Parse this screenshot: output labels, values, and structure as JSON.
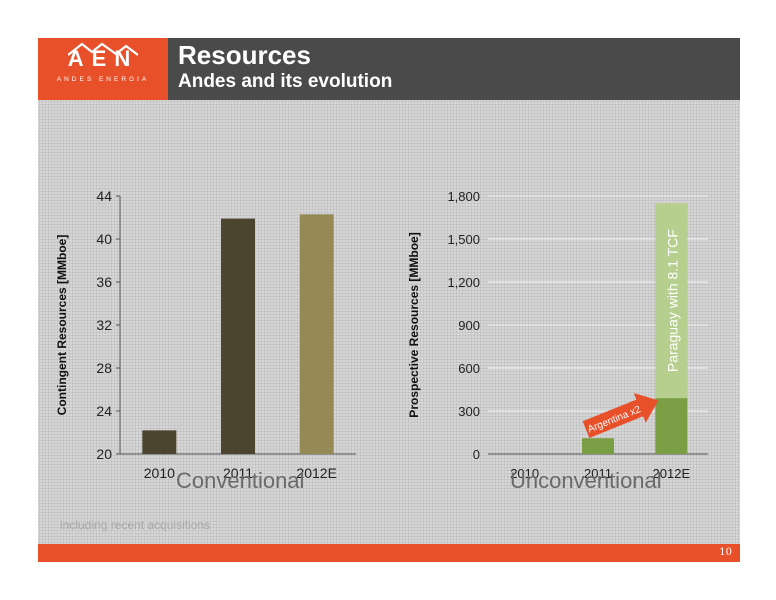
{
  "header": {
    "logo_text": "AEN",
    "logo_subtext": "ANDES ENERGIA",
    "title": "Resources",
    "subtitle": "Andes and its evolution"
  },
  "footnote": "including recent acquisitions",
  "page_number": "10",
  "captions": {
    "left": "Conventional",
    "right": "Unconventional"
  },
  "colors": {
    "orange": "#e8502a",
    "dark_gray": "#4a4a4a",
    "dark_olive": "#4b4530",
    "olive": "#958a56",
    "green": "#7a9e44",
    "light_green": "#b6cf8e"
  },
  "chart_data": [
    {
      "type": "bar",
      "categories": [
        "2010",
        "2011",
        "2012E"
      ],
      "values": [
        22.2,
        41.9,
        42.3
      ],
      "ylabel": "Contingent Resources [MMboe]",
      "ylim": [
        20,
        44
      ],
      "yticks": [
        "20",
        "24",
        "28",
        "32",
        "36",
        "40",
        "44"
      ],
      "grid": false
    },
    {
      "type": "bar",
      "stacked": true,
      "categories": [
        "2010",
        "2011",
        "2012E"
      ],
      "series": [
        {
          "values": [
            0,
            110,
            390
          ]
        },
        {
          "values": [
            0,
            0,
            1360
          ]
        }
      ],
      "ylabel": "Prospective Resources [MMboe]",
      "ylim": [
        0,
        1800
      ],
      "yticks": [
        "0",
        "300",
        "600",
        "900",
        "1,200",
        "1,500",
        "1,800"
      ],
      "grid": true,
      "annotations": [
        "Argentina x2",
        "Paraguay with 8.1 TCF"
      ]
    }
  ]
}
